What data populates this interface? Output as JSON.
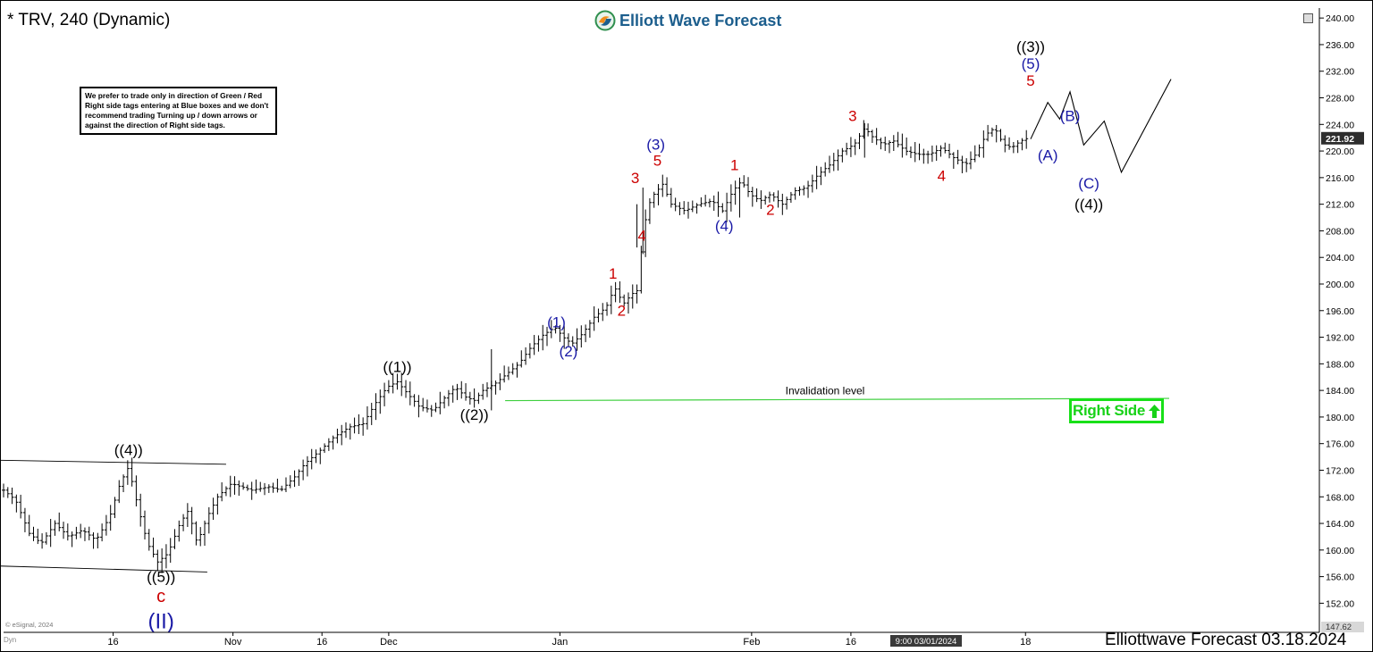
{
  "header": {
    "title": "* TRV, 240 (Dynamic)",
    "brand": "Elliott Wave Forecast"
  },
  "disclaimer": {
    "text": "We prefer to trade only in direction of Green / Red Right side tags entering at Blue boxes and we don't recommend trading Turning up / down arrows or against the direction of Right side tags."
  },
  "right_side_tag": {
    "label": "Right Side",
    "arrow": "up-arrow-icon",
    "color": "#18e018"
  },
  "footer": {
    "text": "Elliottwave Forecast 03.18.2024",
    "esignal": "© eSignal, 2024",
    "dyn": "Dyn",
    "crosshair_date": "9:00 03/01/2024"
  },
  "colors": {
    "wave_black": "#000000",
    "wave_blue": "#1a1aa6",
    "wave_red": "#cc0000",
    "invalidation_line": "#3ecf3e",
    "brand": "#1c5e8d"
  },
  "chart_data": {
    "type": "ohlc-bar",
    "symbol": "TRV",
    "interval": "240",
    "ylim": [
      147.62,
      241.5
    ],
    "y_ticks": [
      152,
      156,
      160,
      164,
      168,
      172,
      176,
      180,
      184,
      188,
      192,
      196,
      200,
      204,
      208,
      212,
      216,
      220,
      224,
      228,
      232,
      236,
      240
    ],
    "y_tick_labels": [
      "152.00",
      "156.00",
      "160.00",
      "164.00",
      "168.00",
      "172.00",
      "176.00",
      "180.00",
      "184.00",
      "188.00",
      "192.00",
      "196.00",
      "200.00",
      "204.00",
      "208.00",
      "212.00",
      "216.00",
      "220.00",
      "224.00",
      "228.00",
      "232.00",
      "236.00",
      "240.00"
    ],
    "last_price": "221.92",
    "axis_min_label": "147.62",
    "x_ticks": [
      "16",
      "Nov",
      "16",
      "Dec",
      "Jan",
      "Feb",
      "16",
      "18"
    ],
    "price_path": [
      [
        0,
        169
      ],
      [
        0.7,
        167.5
      ],
      [
        1.5,
        162.5
      ],
      [
        2.2,
        161
      ],
      [
        3,
        164
      ],
      [
        3.8,
        162
      ],
      [
        4.6,
        163
      ],
      [
        5.4,
        161.5
      ],
      [
        6.2,
        165
      ],
      [
        6.8,
        170
      ],
      [
        7.3,
        172.5
      ],
      [
        7.8,
        167
      ],
      [
        8.4,
        161
      ],
      [
        9.0,
        158.2
      ],
      [
        9.6,
        159.5
      ],
      [
        10.3,
        164
      ],
      [
        10.8,
        166
      ],
      [
        11.3,
        161
      ],
      [
        11.9,
        165
      ],
      [
        12.5,
        168
      ],
      [
        13.3,
        170
      ],
      [
        14.5,
        169
      ],
      [
        15.5,
        169.5
      ],
      [
        16.2,
        169
      ],
      [
        17.0,
        171
      ],
      [
        17.6,
        173
      ],
      [
        18.5,
        175
      ],
      [
        19.3,
        177
      ],
      [
        20.2,
        178.5
      ],
      [
        21.0,
        179
      ],
      [
        21.7,
        182
      ],
      [
        22.4,
        184.5
      ],
      [
        23.0,
        185.3
      ],
      [
        23.6,
        183.5
      ],
      [
        24.3,
        181.5
      ],
      [
        25.1,
        181
      ],
      [
        25.8,
        183
      ],
      [
        26.4,
        184.5
      ],
      [
        27.0,
        183
      ],
      [
        27.5,
        182.5
      ],
      [
        28.0,
        184
      ],
      [
        28.7,
        185
      ],
      [
        29.4,
        186.5
      ],
      [
        30.1,
        188
      ],
      [
        30.8,
        190.5
      ],
      [
        31.5,
        192.3
      ],
      [
        32.2,
        193.5
      ],
      [
        32.7,
        192
      ],
      [
        33.2,
        191
      ],
      [
        33.8,
        192.5
      ],
      [
        34.5,
        195
      ],
      [
        35.2,
        196.5
      ],
      [
        35.7,
        199.5
      ],
      [
        36.2,
        197
      ],
      [
        36.7,
        198.5
      ],
      [
        37.0,
        199
      ],
      [
        37.3,
        206
      ],
      [
        37.6,
        211.5
      ],
      [
        38.0,
        213.5
      ],
      [
        38.5,
        215
      ],
      [
        39.0,
        212
      ],
      [
        39.8,
        211
      ],
      [
        40.6,
        212
      ],
      [
        41.4,
        212.5
      ],
      [
        42.0,
        211
      ],
      [
        42.6,
        214
      ],
      [
        43.1,
        215.5
      ],
      [
        43.6,
        213.5
      ],
      [
        44.2,
        212.5
      ],
      [
        44.8,
        213.5
      ],
      [
        45.5,
        212
      ],
      [
        46.2,
        214
      ],
      [
        46.9,
        214.5
      ],
      [
        47.6,
        216.5
      ],
      [
        48.3,
        218
      ],
      [
        49.0,
        220
      ],
      [
        49.7,
        221
      ],
      [
        50.3,
        223.5
      ],
      [
        50.8,
        222
      ],
      [
        51.4,
        221
      ],
      [
        52.0,
        221.5
      ],
      [
        52.7,
        220
      ],
      [
        53.4,
        219.5
      ],
      [
        54.1,
        219.5
      ],
      [
        54.8,
        220.5
      ],
      [
        55.5,
        219
      ],
      [
        56.2,
        218
      ],
      [
        56.8,
        219.5
      ],
      [
        57.4,
        222.5
      ],
      [
        57.9,
        223.5
      ],
      [
        58.4,
        221
      ],
      [
        58.9,
        220.5
      ],
      [
        59.4,
        221.5
      ],
      [
        59.9,
        222
      ]
    ],
    "projection": [
      [
        60.0,
        221.8
      ],
      [
        61.0,
        227.3
      ],
      [
        61.7,
        224.8
      ],
      [
        62.3,
        228.9
      ],
      [
        63.1,
        220.9
      ],
      [
        64.3,
        224.5
      ],
      [
        65.3,
        216.8
      ],
      [
        68.2,
        230.8
      ]
    ],
    "channel_upper": [
      [
        -0.3,
        173.5
      ],
      [
        13.0,
        172.9
      ]
    ],
    "channel_lower": [
      [
        -0.3,
        157.6
      ],
      [
        11.9,
        156.7
      ]
    ],
    "invalidation": {
      "label": "Invalidation level",
      "price": 182.6
    },
    "wave_labels": [
      {
        "text": "((4))",
        "color": "black",
        "price": 174.3,
        "x": 7.3
      },
      {
        "text": "((5))",
        "color": "black",
        "price": 155.2,
        "x": 9.2
      },
      {
        "text": "c",
        "color": "red",
        "price": 152.2,
        "x": 9.2
      },
      {
        "text": "(II)",
        "color": "blue",
        "price": 148.2,
        "x": 9.2
      },
      {
        "text": "((1))",
        "color": "black",
        "price": 186.8,
        "x": 23.0
      },
      {
        "text": "((2))",
        "color": "black",
        "price": 179.6,
        "x": 27.5
      },
      {
        "text": "(1)",
        "color": "blue",
        "price": 193.5,
        "x": 32.3
      },
      {
        "text": "(2)",
        "color": "blue",
        "price": 189.1,
        "x": 33.0
      },
      {
        "text": "1",
        "color": "red",
        "price": 200.8,
        "x": 35.6
      },
      {
        "text": "2",
        "color": "red",
        "price": 195.2,
        "x": 36.1
      },
      {
        "text": "3",
        "color": "red",
        "price": 215.2,
        "x": 36.9
      },
      {
        "text": "4",
        "color": "red",
        "price": 206.5,
        "x": 37.3
      },
      {
        "text": "5",
        "color": "red",
        "price": 217.8,
        "x": 38.2
      },
      {
        "text": "(3)",
        "color": "blue",
        "price": 220.2,
        "x": 38.1
      },
      {
        "text": "(4)",
        "color": "blue",
        "price": 208.0,
        "x": 42.1
      },
      {
        "text": "1",
        "color": "red",
        "price": 217.1,
        "x": 42.7
      },
      {
        "text": "2",
        "color": "red",
        "price": 210.4,
        "x": 44.8
      },
      {
        "text": "3",
        "color": "red",
        "price": 224.5,
        "x": 49.6
      },
      {
        "text": "4",
        "color": "red",
        "price": 215.5,
        "x": 54.8
      },
      {
        "text": "((3))",
        "color": "black",
        "price": 234.9,
        "x": 60.0
      },
      {
        "text": "(5)",
        "color": "blue",
        "price": 232.4,
        "x": 60.0
      },
      {
        "text": "5",
        "color": "red",
        "price": 229.8,
        "x": 60.0
      },
      {
        "text": "(B)",
        "color": "blue",
        "price": 224.5,
        "x": 62.3
      },
      {
        "text": "(A)",
        "color": "blue",
        "price": 218.6,
        "x": 61.0
      },
      {
        "text": "(C)",
        "color": "blue",
        "price": 214.4,
        "x": 63.4
      },
      {
        "text": "((4))",
        "color": "black",
        "price": 211.2,
        "x": 63.4
      }
    ]
  }
}
